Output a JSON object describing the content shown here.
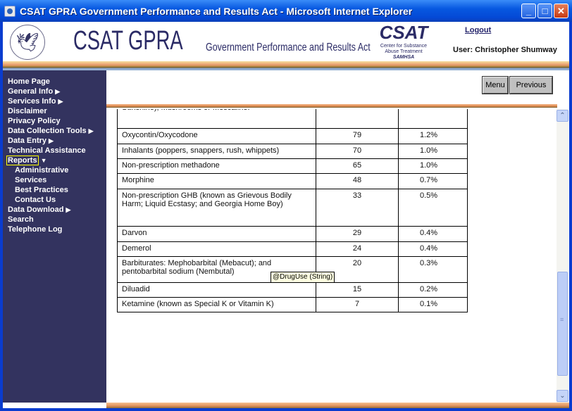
{
  "window": {
    "title": "CSAT GPRA Government Performance and Results Act - Microsoft Internet Explorer",
    "min": "_",
    "max": "□",
    "close": "✕"
  },
  "header": {
    "logo_main": "CSAT GPRA",
    "logo_sub": "Government Performance and Results Act",
    "csat_logo": "CSAT",
    "csat_line1": "Center for Substance",
    "csat_line2": "Abuse Treatment",
    "csat_line3": "SAMHSA",
    "logout": "Logout",
    "user": "User: Christopher Shumway"
  },
  "sidebar": {
    "items": [
      {
        "label": "Home Page"
      },
      {
        "label": "General Info",
        "arrow": "▶"
      },
      {
        "label": "Services Info",
        "arrow": "▶"
      },
      {
        "label": "Disclaimer"
      },
      {
        "label": "Privacy Policy"
      },
      {
        "label": "Data Collection Tools",
        "arrow": "▶"
      },
      {
        "label": "Data Entry",
        "arrow": "▶"
      },
      {
        "label": "Technical Assistance"
      },
      {
        "label": "Reports",
        "arrow": "▼"
      },
      {
        "label": "Administrative"
      },
      {
        "label": "Services"
      },
      {
        "label": "Best Practices"
      },
      {
        "label": "Contact Us"
      },
      {
        "label": "Data Download",
        "arrow": "▶"
      },
      {
        "label": "Search"
      },
      {
        "label": "Telephone Log"
      }
    ]
  },
  "toolbar": {
    "menu": "Menu",
    "previous": "Previous"
  },
  "table": {
    "rows": [
      {
        "drug": "Sunshine), Mushrooms or Mescaline.",
        "count": "",
        "pct": ""
      },
      {
        "drug": "Oxycontin/Oxycodone",
        "count": "79",
        "pct": "1.2%"
      },
      {
        "drug": "Inhalants (poppers, snappers, rush, whippets)",
        "count": "70",
        "pct": "1.0%"
      },
      {
        "drug": "Non-prescription methadone",
        "count": "65",
        "pct": "1.0%"
      },
      {
        "drug": "Morphine",
        "count": "48",
        "pct": "0.7%"
      },
      {
        "drug": "Non-prescription GHB (known as Grievous Bodily Harm; Liquid Ecstasy; and Georgia Home Boy)",
        "count": "33",
        "pct": "0.5%"
      },
      {
        "drug": "Darvon",
        "count": "29",
        "pct": "0.4%"
      },
      {
        "drug": "Demerol",
        "count": "24",
        "pct": "0.4%"
      },
      {
        "drug": "Barbiturates: Mephobarbital (Mebacut); and pentobarbital sodium (Nembutal)",
        "count": "20",
        "pct": "0.3%"
      },
      {
        "drug": "Diluadid",
        "count": "15",
        "pct": "0.2%"
      },
      {
        "drug": "Ketamine (known as Special K or Vitamin K)",
        "count": "7",
        "pct": "0.1%"
      }
    ]
  },
  "tooltip": "@DrugUse (String)",
  "scrollbar": {
    "position_percent": 75,
    "up": "⌃",
    "down": "⌄",
    "grip": "≡"
  }
}
